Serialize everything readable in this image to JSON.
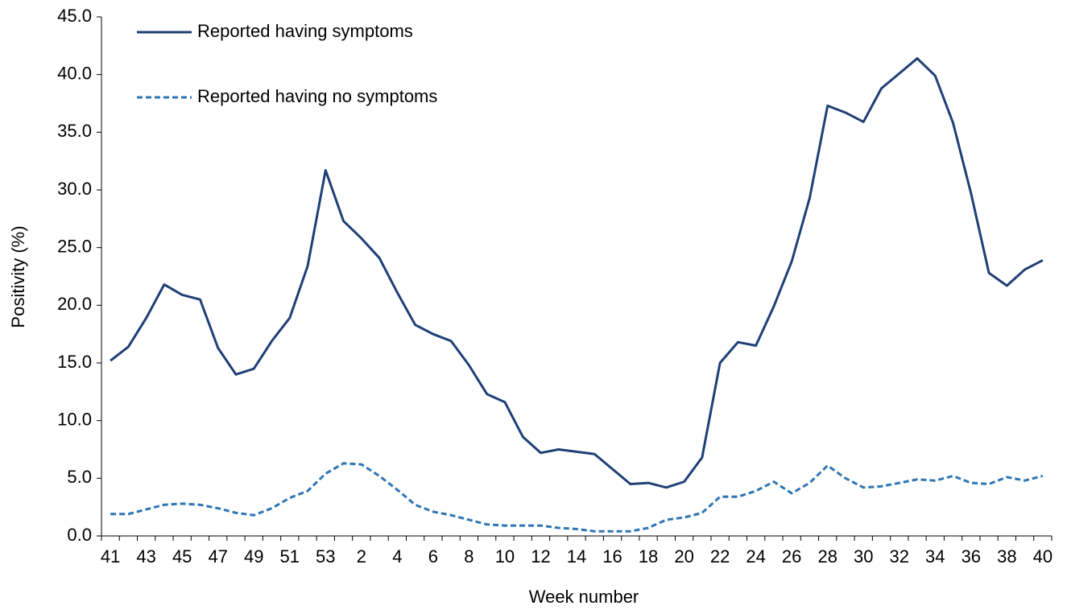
{
  "chart_data": {
    "type": "line",
    "x_label": "Week number",
    "y_label": "Positivity (%)",
    "categories": [
      "41",
      null,
      "43",
      null,
      "45",
      null,
      "47",
      null,
      "49",
      null,
      "51",
      null,
      "53",
      null,
      "2",
      null,
      "4",
      null,
      "6",
      null,
      "8",
      null,
      "10",
      null,
      "12",
      null,
      "14",
      null,
      "16",
      null,
      "18",
      null,
      "20",
      null,
      "22",
      null,
      "24",
      null,
      "26",
      null,
      "28",
      null,
      "30",
      null,
      "32",
      null,
      "34",
      null,
      "36",
      null,
      "38",
      null,
      "40"
    ],
    "series": [
      {
        "name": "Reported having symptoms",
        "color": "#1f3f76",
        "dash": false,
        "values": [
          15.2,
          16.4,
          18.9,
          21.8,
          20.9,
          20.5,
          16.3,
          14.0,
          14.5,
          16.9,
          18.9,
          23.4,
          31.7,
          27.3,
          25.8,
          24.1,
          21.1,
          18.3,
          17.5,
          16.9,
          14.8,
          12.3,
          11.6,
          8.6,
          7.2,
          7.5,
          7.3,
          7.1,
          5.8,
          4.5,
          4.6,
          4.2,
          4.7,
          6.8,
          15.0,
          16.8,
          16.5,
          19.9,
          23.8,
          29.3,
          37.3,
          36.7,
          35.9,
          38.8,
          40.1,
          41.4,
          39.9,
          35.8,
          29.7,
          22.8,
          21.7,
          23.1,
          23.9
        ]
      },
      {
        "name": "Reported having no symptoms",
        "color": "#2e75b6",
        "dash": true,
        "values": [
          1.9,
          1.9,
          2.3,
          2.7,
          2.8,
          2.7,
          2.4,
          2.0,
          1.8,
          2.4,
          3.3,
          3.9,
          5.4,
          6.3,
          6.2,
          5.2,
          4.0,
          2.7,
          2.1,
          1.8,
          1.4,
          1.0,
          0.9,
          0.9,
          0.9,
          0.7,
          0.6,
          0.4,
          0.4,
          0.4,
          0.7,
          1.4,
          1.6,
          2.0,
          3.4,
          3.4,
          3.9,
          4.7,
          3.7,
          4.6,
          6.1,
          5.0,
          4.2,
          4.3,
          4.6,
          4.9,
          4.8,
          5.2,
          4.6,
          4.5,
          5.1,
          4.8,
          5.2
        ]
      }
    ],
    "ylim": [
      0,
      45
    ],
    "yticks": [
      {
        "value": 0,
        "label": "0.0"
      },
      {
        "value": 5,
        "label": "5.0"
      },
      {
        "value": 10,
        "label": "10.0"
      },
      {
        "value": 15,
        "label": "15.0"
      },
      {
        "value": 20,
        "label": "20.0"
      },
      {
        "value": 25,
        "label": "25.0"
      },
      {
        "value": 30,
        "label": "30.0"
      },
      {
        "value": 35,
        "label": "35.0"
      },
      {
        "value": 40,
        "label": "40.0"
      },
      {
        "value": 45,
        "label": "45.0"
      }
    ],
    "grid": false,
    "legend": "upper left"
  }
}
